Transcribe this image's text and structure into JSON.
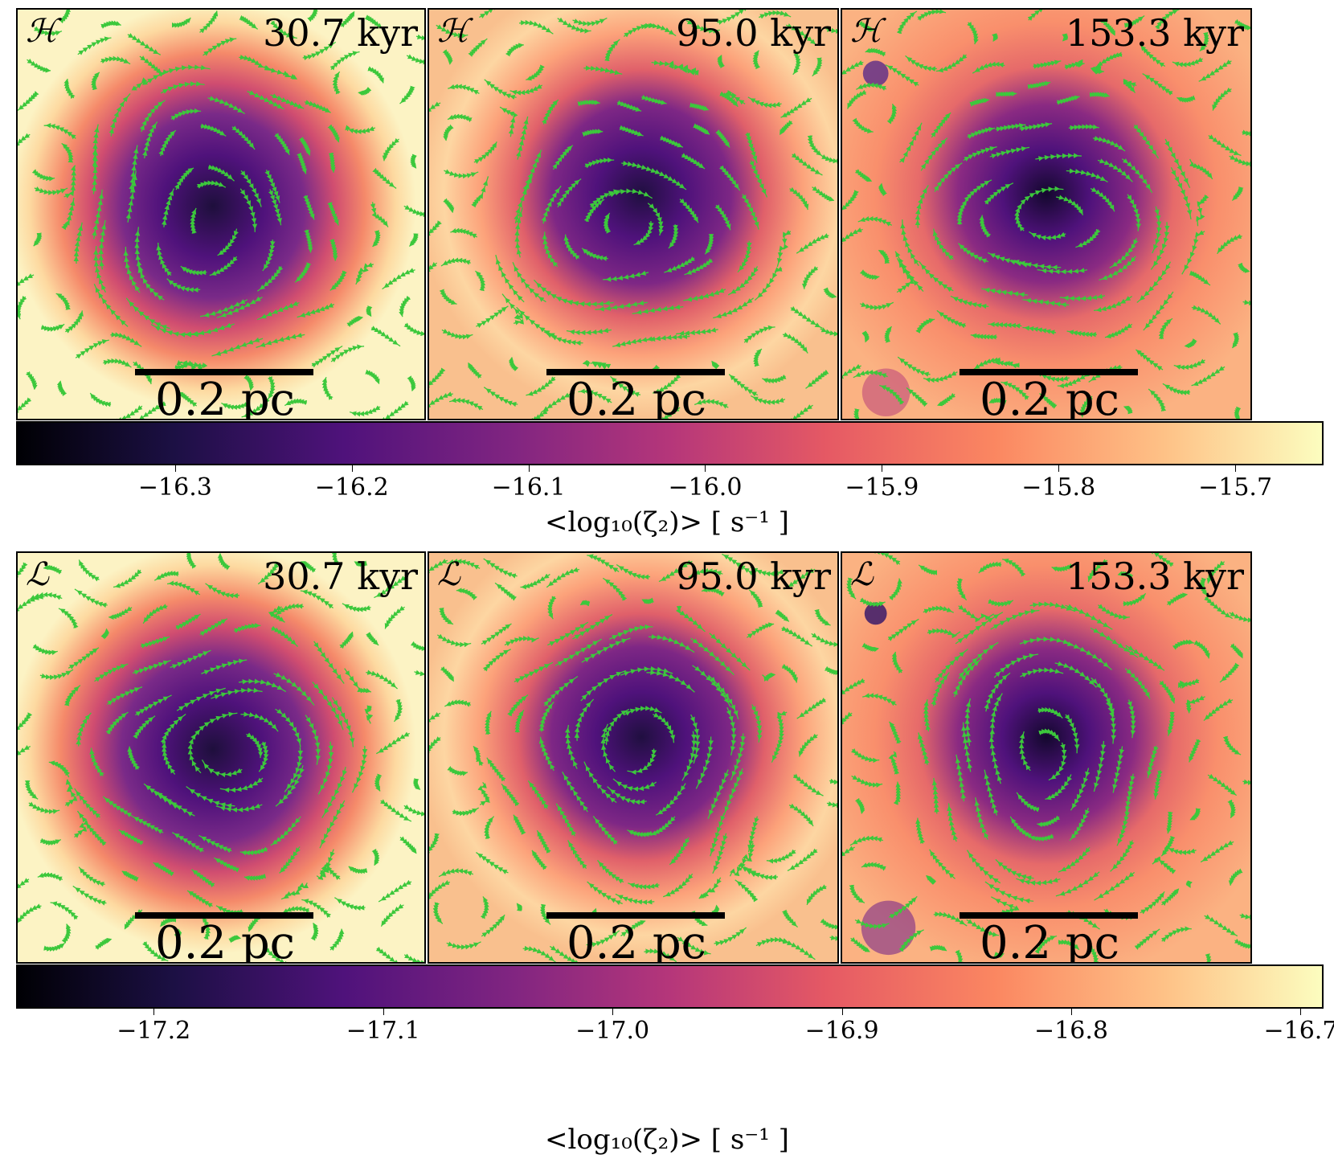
{
  "chart_data": [
    {
      "type": "heatmap",
      "model": "ℋ",
      "panels": [
        {
          "time": "30.7 kyr",
          "scale_label": "0.2 pc"
        },
        {
          "time": "95.0 kyr",
          "scale_label": "0.2 pc"
        },
        {
          "time": "153.3 kyr",
          "scale_label": "0.2 pc"
        }
      ],
      "colorbar": {
        "colormap": "magma",
        "range": [
          -16.39,
          -15.65
        ],
        "ticks": [
          "−16.3",
          "−16.2",
          "−16.1",
          "−16.0",
          "−15.9",
          "−15.8",
          "−15.7"
        ],
        "tick_values": [
          -16.3,
          -16.2,
          -16.1,
          -16.0,
          -15.9,
          -15.8,
          -15.7
        ],
        "label": "<log₁₀(ζ₂)> [ s⁻¹ ]"
      },
      "streamline_color": "#3cc83c"
    },
    {
      "type": "heatmap",
      "model": "ℒ",
      "panels": [
        {
          "time": "30.7 kyr",
          "scale_label": "0.2 pc"
        },
        {
          "time": "95.0 kyr",
          "scale_label": "0.2 pc"
        },
        {
          "time": "153.3 kyr",
          "scale_label": "0.2 pc"
        }
      ],
      "colorbar": {
        "colormap": "magma",
        "range": [
          -17.26,
          -16.69
        ],
        "ticks": [
          "−17.2",
          "−17.1",
          "−17.0",
          "−16.9",
          "−16.8",
          "−16.7"
        ],
        "tick_values": [
          -17.2,
          -17.1,
          -17.0,
          -16.9,
          -16.8,
          -16.7
        ],
        "label": "<log₁₀(ζ₂)> [ s⁻¹ ]"
      },
      "streamline_color": "#3cc83c"
    }
  ]
}
